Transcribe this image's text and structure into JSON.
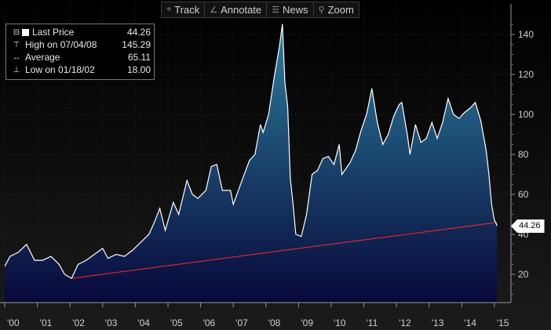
{
  "toolbar": {
    "track": "Track",
    "annotate": "Annotate",
    "news": "News",
    "zoom": "Zoom",
    "icons": {
      "track": "crosshair-icon",
      "annotate": "pencil-icon",
      "news": "news-icon",
      "zoom": "magnifier-icon"
    }
  },
  "legend": {
    "last_price_label": "Last Price",
    "last_price_value": "44.26",
    "high_label": "High on 07/04/08",
    "high_value": "145.29",
    "average_label": "Average",
    "average_value": "65.11",
    "low_label": "Low on 01/18/02",
    "low_value": "18.00"
  },
  "last_price_badge": "44.26",
  "colors": {
    "price_line": "#ffffff",
    "trend_line": "#ff2a2a",
    "area_top": "#2c7f9e",
    "area_bottom": "#08083a",
    "background": "#000000"
  },
  "chart_data": {
    "type": "area",
    "title": "",
    "xlabel": "",
    "ylabel": "",
    "x_tick_labels": [
      "'00",
      "'01",
      "'02",
      "'03",
      "'04",
      "'05",
      "'06",
      "'07",
      "'08",
      "'09",
      "'10",
      "'11",
      "'12",
      "'13",
      "'14",
      "'15"
    ],
    "y_tick_labels": [
      "20",
      "40",
      "60",
      "80",
      "100",
      "120",
      "140"
    ],
    "y_ticks": [
      20,
      40,
      60,
      80,
      100,
      120,
      140
    ],
    "ylim": [
      8,
      150
    ],
    "xlim": [
      "2000-01-01",
      "2015-02-15"
    ],
    "grid": true,
    "y_axis_side": "right",
    "series": [
      {
        "name": "Last Price",
        "points": [
          [
            "2000-01-01",
            24
          ],
          [
            "2000-03-01",
            29
          ],
          [
            "2000-06-01",
            31
          ],
          [
            "2000-09-01",
            35
          ],
          [
            "2000-12-01",
            27
          ],
          [
            "2001-03-01",
            27
          ],
          [
            "2001-06-01",
            29
          ],
          [
            "2001-09-01",
            25
          ],
          [
            "2001-11-01",
            20
          ],
          [
            "2002-01-18",
            18
          ],
          [
            "2002-04-01",
            25
          ],
          [
            "2002-07-01",
            27
          ],
          [
            "2002-10-01",
            30
          ],
          [
            "2003-01-01",
            33
          ],
          [
            "2003-03-01",
            28
          ],
          [
            "2003-06-01",
            30
          ],
          [
            "2003-09-01",
            29
          ],
          [
            "2003-12-01",
            32
          ],
          [
            "2004-03-01",
            36
          ],
          [
            "2004-06-01",
            40
          ],
          [
            "2004-08-01",
            46
          ],
          [
            "2004-10-01",
            53
          ],
          [
            "2004-12-01",
            42
          ],
          [
            "2005-03-01",
            56
          ],
          [
            "2005-05-01",
            50
          ],
          [
            "2005-08-01",
            67
          ],
          [
            "2005-10-01",
            60
          ],
          [
            "2005-12-01",
            58
          ],
          [
            "2006-03-01",
            62
          ],
          [
            "2006-05-01",
            74
          ],
          [
            "2006-07-01",
            75
          ],
          [
            "2006-09-01",
            62
          ],
          [
            "2006-12-01",
            62
          ],
          [
            "2007-01-01",
            55
          ],
          [
            "2007-04-01",
            66
          ],
          [
            "2007-07-01",
            77
          ],
          [
            "2007-09-01",
            80
          ],
          [
            "2007-11-01",
            95
          ],
          [
            "2007-12-01",
            91
          ],
          [
            "2008-02-01",
            100
          ],
          [
            "2008-04-01",
            118
          ],
          [
            "2008-06-01",
            134
          ],
          [
            "2008-07-04",
            145.29
          ],
          [
            "2008-08-01",
            116
          ],
          [
            "2008-09-01",
            104
          ],
          [
            "2008-10-01",
            68
          ],
          [
            "2008-11-01",
            55
          ],
          [
            "2008-12-01",
            40
          ],
          [
            "2009-02-01",
            39
          ],
          [
            "2009-04-01",
            50
          ],
          [
            "2009-06-01",
            70
          ],
          [
            "2009-08-01",
            72
          ],
          [
            "2009-10-01",
            78
          ],
          [
            "2009-12-01",
            79
          ],
          [
            "2010-02-01",
            75
          ],
          [
            "2010-04-01",
            85
          ],
          [
            "2010-05-01",
            70
          ],
          [
            "2010-08-01",
            76
          ],
          [
            "2010-10-01",
            82
          ],
          [
            "2010-12-01",
            92
          ],
          [
            "2011-02-01",
            100
          ],
          [
            "2011-04-01",
            113
          ],
          [
            "2011-06-01",
            96
          ],
          [
            "2011-08-01",
            85
          ],
          [
            "2011-10-01",
            90
          ],
          [
            "2011-12-01",
            99
          ],
          [
            "2012-02-01",
            105
          ],
          [
            "2012-03-01",
            106
          ],
          [
            "2012-05-01",
            90
          ],
          [
            "2012-06-01",
            80
          ],
          [
            "2012-08-01",
            95
          ],
          [
            "2012-10-01",
            86
          ],
          [
            "2012-12-01",
            88
          ],
          [
            "2013-02-01",
            96
          ],
          [
            "2013-04-01",
            88
          ],
          [
            "2013-06-01",
            96
          ],
          [
            "2013-08-01",
            108
          ],
          [
            "2013-10-01",
            100
          ],
          [
            "2013-12-01",
            98
          ],
          [
            "2014-02-01",
            101
          ],
          [
            "2014-04-01",
            103
          ],
          [
            "2014-06-01",
            106
          ],
          [
            "2014-08-01",
            97
          ],
          [
            "2014-10-01",
            82
          ],
          [
            "2014-11-01",
            70
          ],
          [
            "2014-12-01",
            55
          ],
          [
            "2015-01-01",
            47
          ],
          [
            "2015-01-15",
            46
          ],
          [
            "2015-01-31",
            44.26
          ]
        ]
      }
    ],
    "trend_line": {
      "start": [
        "2002-01-18",
        18
      ],
      "end": [
        "2015-01-31",
        46
      ]
    }
  }
}
